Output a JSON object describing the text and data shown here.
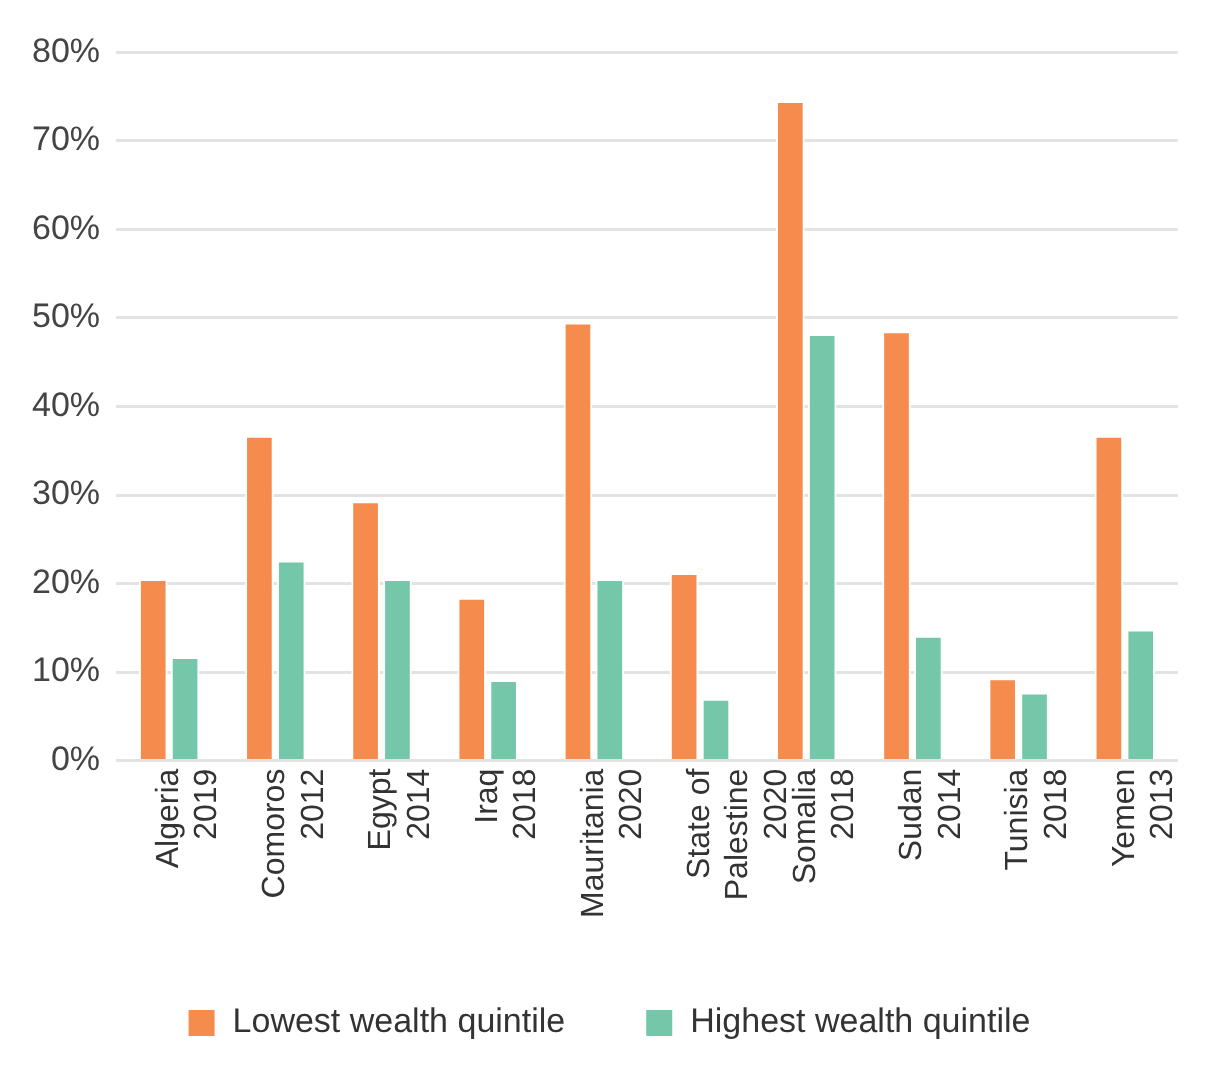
{
  "chart_data": {
    "type": "bar",
    "categories": [
      "Algeria\n2019",
      "Comoros\n2012",
      "Egypt\n2014",
      "Iraq\n2018",
      "Mauritania\n2020",
      "State of\nPalestine\n2020",
      "Somalia\n2018",
      "Sudan\n2014",
      "Tunisia\n2018",
      "Yemen\n2013"
    ],
    "series": [
      {
        "name": "Lowest wealth quintile",
        "color": "#f58b4c",
        "values": [
          20.5,
          36.7,
          29.3,
          18.4,
          49.5,
          21.2,
          74.5,
          48.5,
          9.3,
          36.7
        ]
      },
      {
        "name": "Highest wealth quintile",
        "color": "#74c7a9",
        "values": [
          11.7,
          22.6,
          20.5,
          9.1,
          20.5,
          7.0,
          48.2,
          14.1,
          7.7,
          14.8
        ]
      }
    ],
    "ylim": [
      0,
      80
    ],
    "yticks": [
      {
        "value": 0,
        "label": "0%"
      },
      {
        "value": 10,
        "label": "10%"
      },
      {
        "value": 20,
        "label": "20%"
      },
      {
        "value": 30,
        "label": "30%"
      },
      {
        "value": 40,
        "label": "40%"
      },
      {
        "value": 50,
        "label": "50%"
      },
      {
        "value": 60,
        "label": "60%"
      },
      {
        "value": 70,
        "label": "70%"
      },
      {
        "value": 80,
        "label": "80%"
      }
    ],
    "grid": "y",
    "legend": "bottom"
  }
}
